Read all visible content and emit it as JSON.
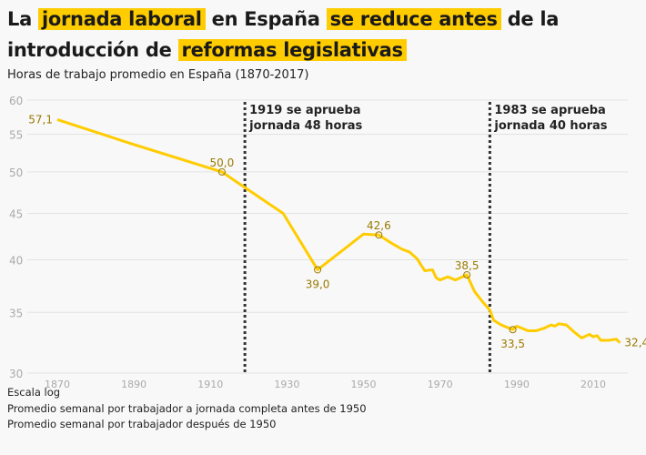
{
  "title": {
    "p1": "La ",
    "h1": "jornada laboral",
    "p2": " en España ",
    "h2": "se reduce antes",
    "p3": " de la introducción de ",
    "h3": "reformas legislativas"
  },
  "subtitle": "Horas de trabajo promedio en España (1870-2017)",
  "notes": [
    "Escala log",
    "Promedio semanal por trabajador a jornada completa antes de 1950",
    "Promedio semanal por trabajador después de 1950"
  ],
  "colors": {
    "line": "#ffcc00",
    "label": "#9a7a00",
    "grid": "#e2e2e2",
    "axis": "#aaaaaa",
    "highlight": "#ffcc00"
  },
  "chart_data": {
    "type": "line",
    "scale": "log",
    "ylim": [
      30,
      60
    ],
    "xlim": [
      1870,
      2017
    ],
    "yticks": [
      30,
      35,
      40,
      45,
      50,
      55,
      60
    ],
    "xticks": [
      1870,
      1890,
      1910,
      1930,
      1950,
      1970,
      1990,
      2010
    ],
    "series": [
      {
        "name": "Horas de trabajo promedio",
        "x": [
          1870,
          1890,
          1913,
          1929,
          1938,
          1950,
          1954,
          1957,
          1960,
          1962,
          1964,
          1966,
          1968,
          1969,
          1970,
          1972,
          1974,
          1977,
          1979,
          1981,
          1983,
          1984,
          1986,
          1989,
          1990,
          1993,
          1995,
          1997,
          1999,
          2000,
          2001,
          2003,
          2005,
          2007,
          2009,
          2010,
          2011,
          2012,
          2014,
          2016,
          2017
        ],
        "y": [
          57.1,
          53.6,
          50.0,
          45.0,
          39.0,
          42.7,
          42.6,
          41.8,
          41.1,
          40.8,
          40.1,
          38.9,
          39.0,
          38.2,
          38.0,
          38.3,
          38.0,
          38.5,
          36.9,
          36.0,
          35.2,
          34.3,
          33.9,
          33.5,
          33.8,
          33.4,
          33.4,
          33.6,
          33.9,
          33.8,
          34.0,
          33.9,
          33.3,
          32.8,
          33.1,
          32.9,
          33.0,
          32.6,
          32.6,
          32.7,
          32.4
        ]
      }
    ],
    "labeled_points": [
      {
        "x": 1870,
        "y": 57.1,
        "label": "57,1",
        "pos": "left",
        "marker": false
      },
      {
        "x": 1913,
        "y": 50.0,
        "label": "50,0",
        "pos": "above",
        "marker": true
      },
      {
        "x": 1938,
        "y": 39.0,
        "label": "39,0",
        "pos": "below",
        "marker": true
      },
      {
        "x": 1954,
        "y": 42.6,
        "label": "42,6",
        "pos": "above",
        "marker": true
      },
      {
        "x": 1977,
        "y": 38.5,
        "label": "38,5",
        "pos": "above",
        "marker": true
      },
      {
        "x": 1989,
        "y": 33.5,
        "label": "33,5",
        "pos": "below",
        "marker": true
      },
      {
        "x": 2017,
        "y": 32.4,
        "label": "32,4",
        "pos": "right",
        "marker": false
      }
    ],
    "annotations": [
      {
        "x": 1919,
        "lines": [
          "1919 se aprueba",
          "jornada 48 horas"
        ]
      },
      {
        "x": 1983,
        "lines": [
          "1983 se aprueba",
          "jornada 40 horas"
        ]
      }
    ]
  }
}
